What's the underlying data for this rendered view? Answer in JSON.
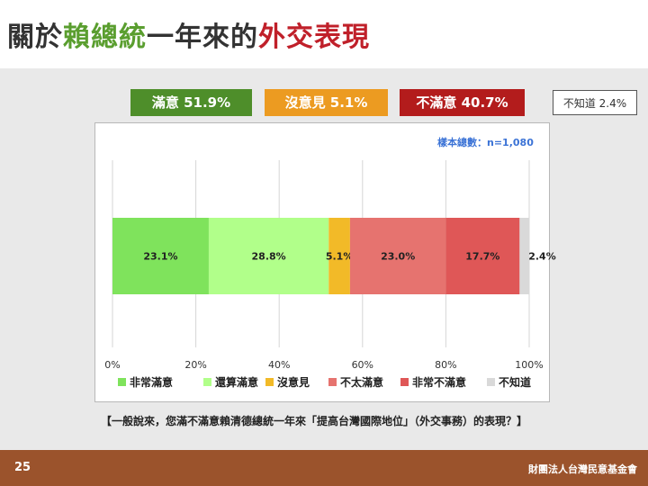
{
  "title": {
    "part1": "關於",
    "part2": "賴總統",
    "part3": "一年來的",
    "part4": "外交表現"
  },
  "summary": {
    "satisfied": "滿意 51.9%",
    "no_opinion": "沒意見 5.1%",
    "dissatisfied": "不滿意 40.7%",
    "unknown": "不知道 2.4%"
  },
  "sample_size": "樣本總數：n=1,080",
  "question": "【一般說來，您滿不滿意賴清德總統一年來「提高台灣國際地位」（外交事務）的表現？】",
  "footer": {
    "page": "25",
    "org": "財團法人台灣民意基金會"
  },
  "colors": {
    "very_satisfied": "#7fe35c",
    "somewhat_satisfied": "#b1ff8a",
    "no_opinion": "#f2ba28",
    "not_very_satisfied": "#e6736f",
    "not_at_all_satisfied": "#df5757",
    "unknown": "#d9d9d9"
  },
  "chart_data": {
    "type": "bar",
    "orientation": "horizontal",
    "stacked": true,
    "categories": [
      ""
    ],
    "series": [
      {
        "name": "非常滿意",
        "values": [
          23.1
        ],
        "label": "23.1%",
        "color": "#7fe35c"
      },
      {
        "name": "還算滿意",
        "values": [
          28.8
        ],
        "label": "28.8%",
        "color": "#b1ff8a"
      },
      {
        "name": "沒意見",
        "values": [
          5.1
        ],
        "label": "5.1%",
        "color": "#f2ba28"
      },
      {
        "name": "不太滿意",
        "values": [
          23.0
        ],
        "label": "23.0%",
        "color": "#e6736f"
      },
      {
        "name": "非常不滿意",
        "values": [
          17.7
        ],
        "label": "17.7%",
        "color": "#df5757"
      },
      {
        "name": "不知道",
        "values": [
          2.4
        ],
        "label": "2.4%",
        "color": "#d9d9d9"
      }
    ],
    "xlim": [
      0,
      100
    ],
    "xticks": [
      "0%",
      "20%",
      "40%",
      "60%",
      "80%",
      "100%"
    ],
    "grid": true,
    "legend": "bottom"
  }
}
